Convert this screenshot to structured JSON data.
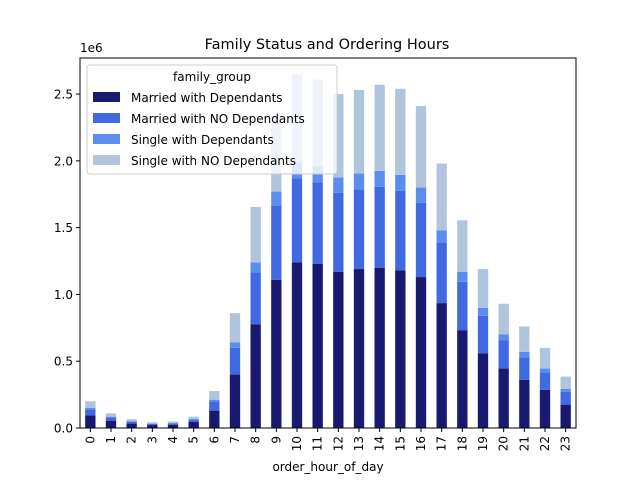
{
  "chart_data": {
    "type": "bar",
    "stacked": true,
    "title": "Family Status and Ordering Hours",
    "xlabel": "order_hour_of_day",
    "ylabel": "",
    "offset_label": "1e6",
    "ylim": [
      0,
      2770000
    ],
    "yticks": [
      0.0,
      0.5,
      1.0,
      1.5,
      2.0,
      2.5
    ],
    "ytick_labels": [
      "0.0",
      "0.5",
      "1.0",
      "1.5",
      "2.0",
      "2.5"
    ],
    "grid": false,
    "legend": {
      "title": "family_group",
      "placement": "top-left"
    },
    "categories": [
      "0",
      "1",
      "2",
      "3",
      "4",
      "5",
      "6",
      "7",
      "8",
      "9",
      "10",
      "11",
      "12",
      "13",
      "14",
      "15",
      "16",
      "17",
      "18",
      "19",
      "20",
      "21",
      "22",
      "23"
    ],
    "series": [
      {
        "name": "Married with Dependants",
        "color": "#191970",
        "values": [
          95000,
          55000,
          33000,
          22000,
          25000,
          45000,
          130000,
          400000,
          775000,
          1110000,
          1240000,
          1230000,
          1170000,
          1190000,
          1200000,
          1180000,
          1130000,
          935000,
          730000,
          560000,
          445000,
          360000,
          285000,
          175000
        ]
      },
      {
        "name": "Married with NO Dependants",
        "color": "#4169e1",
        "values": [
          45000,
          25000,
          15000,
          9000,
          10000,
          18000,
          70000,
          200000,
          390000,
          555000,
          630000,
          610000,
          590000,
          595000,
          605000,
          595000,
          555000,
          450000,
          365000,
          280000,
          210000,
          170000,
          130000,
          95000
        ]
      },
      {
        "name": "Single with Dependants",
        "color": "#5b8def",
        "values": [
          10000,
          5000,
          3000,
          2000,
          2000,
          4000,
          12000,
          40000,
          75000,
          105000,
          120000,
          120000,
          115000,
          120000,
          120000,
          120000,
          115000,
          95000,
          75000,
          60000,
          45000,
          40000,
          30000,
          22000
        ]
      },
      {
        "name": "Single with NO Dependants",
        "color": "#b0c4de",
        "values": [
          50000,
          25000,
          15000,
          10000,
          12000,
          18000,
          65000,
          220000,
          415000,
          565000,
          660000,
          650000,
          625000,
          625000,
          645000,
          645000,
          610000,
          500000,
          385000,
          290000,
          230000,
          190000,
          155000,
          93000
        ]
      }
    ]
  }
}
